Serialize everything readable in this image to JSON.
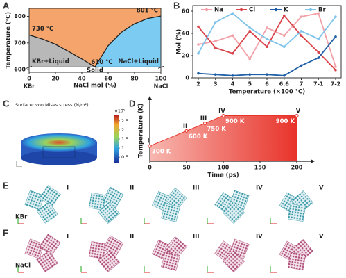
{
  "panel_labels": [
    "A",
    "B",
    "C",
    "D",
    "E",
    "F"
  ],
  "chart_data": [
    {
      "type": "phase",
      "xlabel": "NaCl mol (%)",
      "ylabel": "Temperature (°C)",
      "x": [
        0,
        10,
        20,
        30,
        40,
        50,
        60,
        70,
        80,
        90,
        100
      ],
      "values": [
        730,
        715,
        695,
        668,
        640,
        610,
        690,
        740,
        772,
        792,
        801
      ],
      "xlim": [
        0,
        100
      ],
      "ylim": [
        590,
        830
      ],
      "xticks": [
        0,
        20,
        40,
        60,
        80,
        100
      ],
      "yticks": [
        600,
        700,
        800
      ],
      "end_labels": [
        "KBr",
        "NaCl"
      ],
      "annotations": [
        "730 °C",
        "610 °C",
        "801 °C"
      ],
      "regions": [
        "KBr+Liquid",
        "NaCl+Liquid",
        "Solid"
      ],
      "colors": {
        "liquid": "#f5a46b",
        "left": "#b8b8b8",
        "right": "#7ccbf2",
        "line": "#222222"
      }
    },
    {
      "type": "line",
      "xlabel": "Temperature (×100 °C)",
      "ylabel": "Mol (%)",
      "categories": [
        "2",
        "3",
        "4",
        "5",
        "6",
        "6.6",
        "7",
        "7-1",
        "7-2"
      ],
      "series": [
        {
          "name": "Na",
          "color": "#f2a0a8",
          "values": [
            30,
            33,
            38,
            17,
            45,
            38,
            55,
            58,
            10
          ]
        },
        {
          "name": "Cl",
          "color": "#d9434a",
          "values": [
            46,
            27,
            22,
            42,
            28,
            56,
            38,
            23,
            7
          ]
        },
        {
          "name": "K",
          "color": "#1f5fa8",
          "values": [
            4,
            3,
            2,
            3,
            3,
            2,
            11,
            18,
            37
          ]
        },
        {
          "name": "Br",
          "color": "#7ec3ea",
          "values": [
            22,
            50,
            58,
            45,
            35,
            28,
            42,
            35,
            55
          ]
        }
      ],
      "ylim": [
        0,
        65
      ],
      "yticks": [
        0,
        20,
        40,
        60
      ],
      "legend": "top"
    },
    {
      "type": "area",
      "xlabel": "Time (ps)",
      "ylabel": "Temperature (K)",
      "x": [
        0,
        50,
        75,
        100,
        200
      ],
      "values": [
        300,
        600,
        750,
        900,
        900
      ],
      "value_labels": [
        "300 K",
        "600 K",
        "750 K",
        "900 K",
        "900 K"
      ],
      "point_labels": [
        "I",
        "II",
        "III",
        "IV",
        "V"
      ],
      "xlim": [
        0,
        200
      ],
      "ylim": [
        0,
        1100
      ],
      "xticks": [
        0,
        50,
        100,
        150,
        200
      ],
      "color": "#e8332a"
    }
  ],
  "simulation": {
    "title": "Surface: von Mises stress (N/m²)",
    "scale": "×10⁵",
    "colorbar_ticks": [
      0.5,
      1,
      1.5,
      2,
      2.5
    ],
    "colorbar_range": [
      0.2,
      2.8
    ]
  },
  "snapshots": [
    {
      "material": "KBr",
      "stages": [
        "I",
        "II",
        "III",
        "IV",
        "V"
      ],
      "color": "#3a9aa8"
    },
    {
      "material": "NaCl",
      "stages": [
        "I",
        "II",
        "III",
        "IV",
        "V"
      ],
      "color": "#b0507a"
    }
  ]
}
